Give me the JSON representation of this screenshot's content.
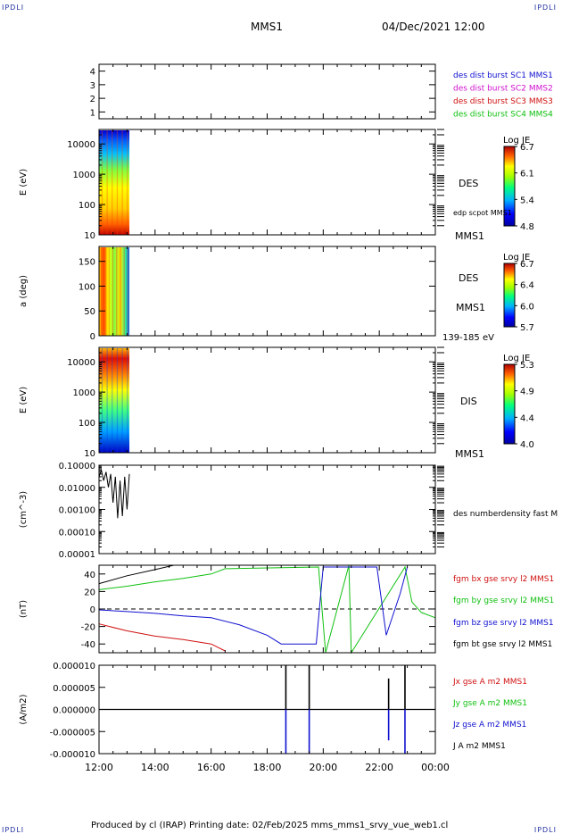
{
  "header": {
    "corner_left": "IPDLI",
    "corner_right": "IPDLI",
    "spacecraft": "MMS1",
    "datetime": "04/Dec/2021 12:00"
  },
  "footer": {
    "text": "Produced by cl (IRAP)   Printing date: 02/Feb/2025   mms_mms1_srvy_vue_web1.cl",
    "corner_left": "IPDLI",
    "corner_right": "IPDLI"
  },
  "colors": {
    "blue": "#1010d0",
    "magenta": "#d010d0",
    "red": "#d01010",
    "green": "#10c010",
    "black": "#000000"
  },
  "chart_data": [
    {
      "type": "table",
      "panel": "burst",
      "ylim": [
        0.5,
        4.5
      ],
      "yticks": [
        "4",
        "3",
        "2",
        "1"
      ],
      "legend": [
        {
          "label": "des dist burst SC1 MMS1",
          "color": "#1010d0"
        },
        {
          "label": "des dist burst SC2 MMS2",
          "color": "#d010d0"
        },
        {
          "label": "des dist burst SC3 MMS3",
          "color": "#d01010"
        },
        {
          "label": "des dist burst SC4 MMS4",
          "color": "#10c010"
        }
      ]
    },
    {
      "type": "heatmap",
      "panel": "des_energy",
      "ylabel": "E (eV)",
      "yscale": "log",
      "ylim": [
        10,
        30000
      ],
      "yticks": [
        "10000",
        "1000",
        "100",
        "10"
      ],
      "xlim": [
        "12:00",
        "13:05"
      ],
      "label": "DES",
      "extra_label": "edp scpot MMS1",
      "bottom_label": "MMS1",
      "colorbar": {
        "title": "Log JE",
        "ticks": [
          "6.7",
          "6.1",
          "5.4",
          "4.8"
        ],
        "range": [
          4.8,
          6.7
        ]
      }
    },
    {
      "type": "heatmap",
      "panel": "des_pitch",
      "ylabel": "a (deg)",
      "ylim": [
        0,
        180
      ],
      "yticks": [
        "150",
        "100",
        "50",
        "0"
      ],
      "xlim": [
        "12:00",
        "13:05"
      ],
      "label": "DES",
      "label2": "MMS1",
      "bottom_label": "139-185 eV",
      "colorbar": {
        "title": "Log JE",
        "ticks": [
          "6.7",
          "6.4",
          "6.0",
          "5.7"
        ],
        "range": [
          5.7,
          6.7
        ]
      }
    },
    {
      "type": "heatmap",
      "panel": "dis_energy",
      "ylabel": "E (eV)",
      "yscale": "log",
      "ylim": [
        10,
        30000
      ],
      "yticks": [
        "10000",
        "1000",
        "100",
        "10"
      ],
      "xlim": [
        "12:00",
        "13:05"
      ],
      "label": "DIS",
      "bottom_label": "MMS1",
      "colorbar": {
        "title": "Log JE",
        "ticks": [
          "5.3",
          "4.9",
          "4.4",
          "4.0"
        ],
        "range": [
          4.0,
          5.3
        ]
      }
    },
    {
      "type": "line",
      "panel": "density",
      "ylabel": "(cm^-3)",
      "yscale": "log",
      "ylim": [
        1e-05,
        0.1
      ],
      "yticks": [
        "0.10000",
        "0.01000",
        "0.00100",
        "0.00010",
        "0.00001"
      ],
      "series": [
        {
          "name": "des numberdensity fast M",
          "color": "#000000",
          "x": [
            "12:00",
            "12:05",
            "12:10",
            "12:15",
            "12:20",
            "12:25",
            "12:30",
            "12:35",
            "12:40",
            "12:45",
            "12:50",
            "12:55",
            "13:00",
            "13:05"
          ],
          "y": [
            0.03,
            0.06,
            0.02,
            0.05,
            0.01,
            0.04,
            0.002,
            0.03,
            0.0004,
            0.02,
            0.0005,
            0.03,
            0.001,
            0.04
          ]
        }
      ]
    },
    {
      "type": "line",
      "panel": "bfield",
      "ylabel": "(nT)",
      "ylim": [
        -50,
        50
      ],
      "yticks": [
        "40",
        "20",
        "0",
        "-20",
        "-40"
      ],
      "series": [
        {
          "name": "fgm bx gse srvy l2 MMS1",
          "color": "#d01010",
          "x": [
            "12:00",
            "13:00",
            "14:00",
            "15:00",
            "16:00",
            "16:30"
          ],
          "y": [
            -17,
            -25,
            -31,
            -35,
            -40,
            -48
          ]
        },
        {
          "name": "fgm by gse srvy l2 MMS1",
          "color": "#10c010",
          "x": [
            "12:00",
            "13:00",
            "14:00",
            "15:00",
            "16:00",
            "16:30",
            "19:50",
            "20:05",
            "20:55",
            "21:00",
            "22:55",
            "23:10",
            "23:30",
            "24:00"
          ],
          "y": [
            22,
            26,
            31,
            35,
            40,
            46,
            48,
            -50,
            50,
            -50,
            48,
            8,
            -4,
            -10
          ]
        },
        {
          "name": "fgm bz gse srvy l2 MMS1",
          "color": "#1010d0",
          "x": [
            "12:00",
            "13:00",
            "14:00",
            "15:00",
            "16:00",
            "17:00",
            "18:00",
            "18:30",
            "19:45",
            "20:00",
            "21:55",
            "22:15",
            "22:45",
            "23:00"
          ],
          "y": [
            -1,
            -3,
            -5,
            -8,
            -10,
            -18,
            -30,
            -40,
            -40,
            48,
            48,
            -30,
            18,
            48
          ]
        },
        {
          "name": "fgm bt gse srvy l2 MMS1",
          "color": "#000000",
          "x": [
            "12:00",
            "13:00",
            "14:00",
            "14:40"
          ],
          "y": [
            29,
            38,
            45,
            50
          ]
        }
      ]
    },
    {
      "type": "line",
      "panel": "current",
      "ylabel": "(A/m2)",
      "ylim": [
        -1e-05,
        1e-05
      ],
      "yticks": [
        "0.000010",
        "0.000005",
        "0.000000",
        "-0.000005",
        "-0.000010"
      ],
      "xticks": [
        "12:00",
        "14:00",
        "16:00",
        "18:00",
        "20:00",
        "22:00",
        "00:00"
      ],
      "series": [
        {
          "name": "Jx gse A m2 MMS1",
          "color": "#d01010"
        },
        {
          "name": "Jy gse A m2 MMS1",
          "color": "#10c010"
        },
        {
          "name": "Jz gse A m2 MMS1",
          "color": "#1010d0",
          "x": [
            "18:40",
            "19:30",
            "22:20",
            "22:55"
          ],
          "y": [
            -1e-05,
            -1e-05,
            -7e-06,
            -1e-05
          ]
        },
        {
          "name": "J A m2 MMS1",
          "color": "#000000",
          "x": [
            "18:40",
            "19:30",
            "22:20",
            "22:55"
          ],
          "y": [
            1e-05,
            1e-05,
            7e-06,
            1e-05
          ]
        }
      ]
    }
  ]
}
